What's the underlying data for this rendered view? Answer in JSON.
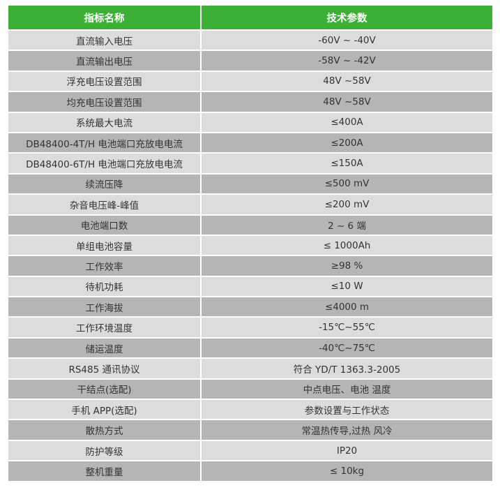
{
  "header": {
    "col1": "指标名称",
    "col2": "技术参数"
  },
  "colors": {
    "header": "#3cb034",
    "row_light": "#dcdcdc",
    "row_dark": "#b5b5b5"
  },
  "rows": [
    {
      "name": "直流输入电压",
      "value": "-60V ~ -40V"
    },
    {
      "name": "直流输出电压",
      "value": "-58V ~ -42V"
    },
    {
      "name": "浮充电压设置范围",
      "value": "48V ~58V"
    },
    {
      "name": "均充电压设置范围",
      "value": "48V ~58V"
    },
    {
      "name": "系统最大电流",
      "value": "≤400A"
    },
    {
      "name": "DB48400-4T/H 电池端口充放电电流",
      "value": "≤200A"
    },
    {
      "name": "DB48400-6T/H 电池端口充放电电流",
      "value": "≤150A"
    },
    {
      "name": "续流压降",
      "value": "≤500 mV"
    },
    {
      "name": "杂音电压峰-峰值",
      "value": "≤200 mV"
    },
    {
      "name": "电池端口数",
      "value": "2 ~ 6 端"
    },
    {
      "name": "单组电池容量",
      "value": "≤ 1000Ah"
    },
    {
      "name": "工作效率",
      "value": "≥98 %"
    },
    {
      "name": "待机功耗",
      "value": "≤10 W"
    },
    {
      "name": "工作海拔",
      "value": "≤4000 m"
    },
    {
      "name": "工作环境温度",
      "value": "-15℃~55℃"
    },
    {
      "name": "储运温度",
      "value": "-40℃~75℃"
    },
    {
      "name": "RS485 通讯协议",
      "value": "符合 YD/T 1363.3-2005"
    },
    {
      "name": "干结点(选配)",
      "value": "中点电压、电池  温度"
    },
    {
      "name": "手机 APP(选配)",
      "value": "参数设置与工作状态"
    },
    {
      "name": "散热方式",
      "value": "常温热传导,过热  风冷"
    },
    {
      "name": "防护等级",
      "value": "IP20"
    },
    {
      "name": "整机重量",
      "value": "≤ 10kg"
    }
  ]
}
